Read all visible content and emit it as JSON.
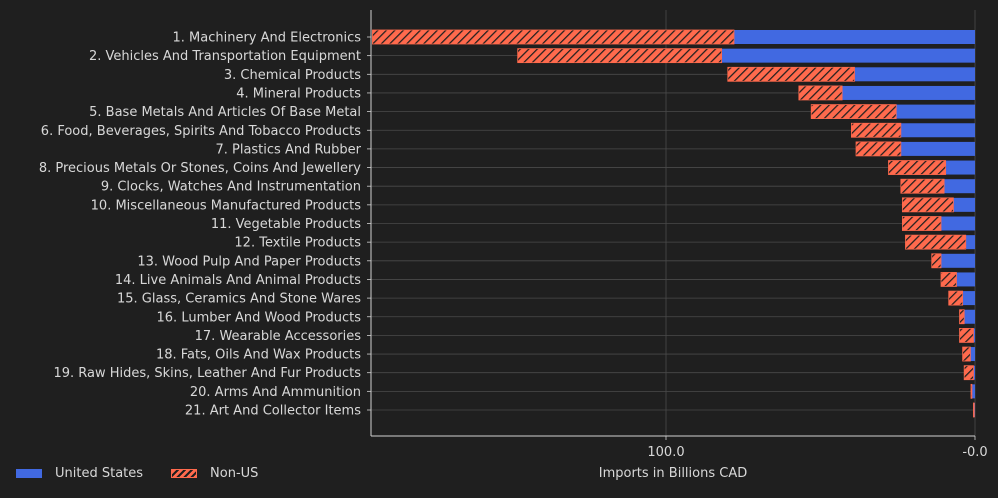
{
  "chart_data": {
    "type": "bar",
    "orientation": "horizontal",
    "stacked": true,
    "x_axis_inverted": true,
    "xlabel": "Imports in Billions CAD",
    "xlim": [
      200,
      0
    ],
    "xticks": [
      100.0,
      0.0
    ],
    "xtick_labels": [
      "100.0",
      "-0.0"
    ],
    "grid": true,
    "legend_position": "bottom-left",
    "colors": {
      "United States": "#4169e1",
      "Non-US": "#ff6a4d"
    },
    "categories": [
      "1. Machinery And Electronics",
      "2. Vehicles And Transportation Equipment",
      "3. Chemical Products",
      "4. Mineral Products",
      "5. Base Metals And Articles Of Base Metal",
      "6. Food, Beverages, Spirits And Tobacco Products",
      "7. Plastics And Rubber",
      "8. Precious Metals Or Stones, Coins And Jewellery",
      "9. Clocks, Watches And Instrumentation",
      "10. Miscellaneous Manufactured Products",
      "11. Vegetable Products",
      "12. Textile Products",
      "13. Wood Pulp And Paper Products",
      "14. Live Animals And Animal Products",
      "15. Glass, Ceramics And Stone Wares",
      "16. Lumber And Wood Products",
      "17. Wearable Accessories",
      "18. Fats, Oils And Wax Products",
      "19. Raw Hides, Skins, Leather And Fur Products",
      "20. Arms And Ammunition",
      "21. Art And Collector Items"
    ],
    "series": [
      {
        "name": "United States",
        "values": [
          78,
          82,
          39,
          43,
          25.5,
          24,
          24,
          9.5,
          10,
          7,
          11,
          3,
          11,
          6,
          4,
          3.5,
          0.5,
          1.5,
          0.5,
          1.0,
          0.3
        ]
      },
      {
        "name": "Non-US",
        "values": [
          117,
          66,
          41,
          14,
          27.5,
          16,
          14.5,
          18.5,
          14,
          16.5,
          12.5,
          19.5,
          3,
          5,
          4.5,
          1.5,
          4.5,
          2.5,
          3,
          0.3,
          0.2
        ]
      }
    ]
  }
}
